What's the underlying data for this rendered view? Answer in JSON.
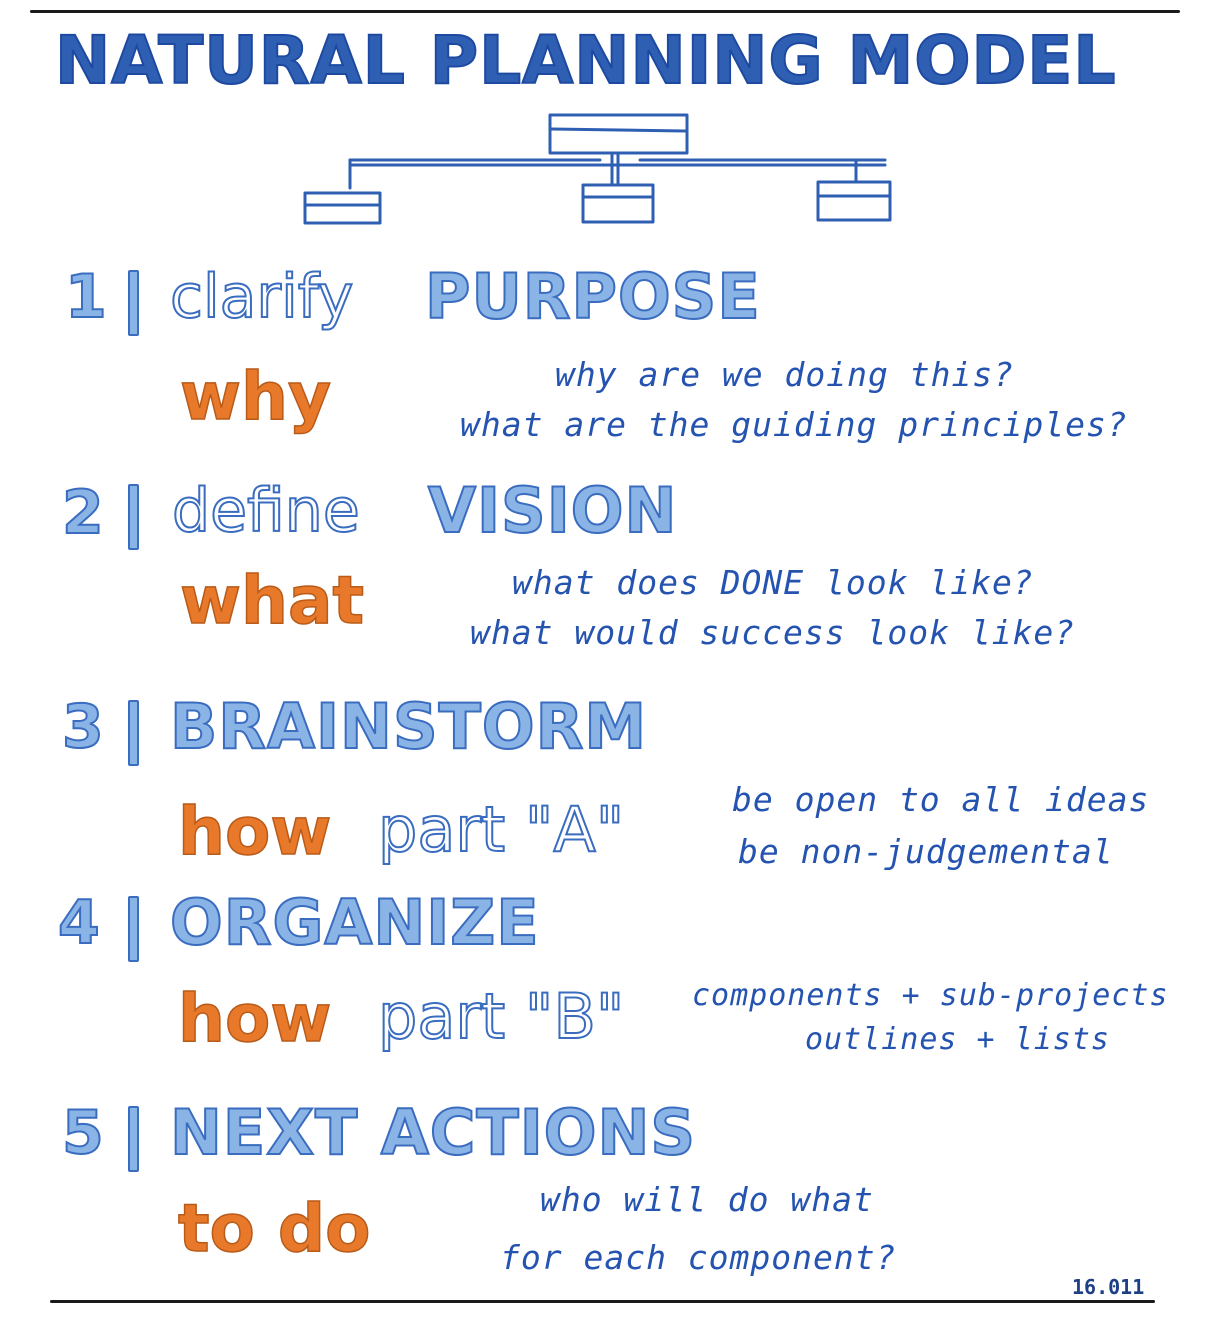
{
  "title": "NATURAL PLANNING MODEL",
  "steps": [
    {
      "number": "1",
      "verb": "clarify",
      "keyword": "PURPOSE",
      "sub": "why",
      "sub_suffix": "",
      "notes": [
        "why are we doing this?",
        "what are the guiding principles?"
      ]
    },
    {
      "number": "2",
      "verb": "define",
      "keyword": "VISION",
      "sub": "what",
      "sub_suffix": "",
      "notes": [
        "what does DONE look like?",
        "what would success look like?"
      ]
    },
    {
      "number": "3",
      "verb": "",
      "keyword": "BRAINSTORM",
      "sub": "how",
      "sub_suffix": "part \"A\"",
      "notes": [
        "be open to all ideas",
        "be non-judgemental"
      ]
    },
    {
      "number": "4",
      "verb": "",
      "keyword": "ORGANIZE",
      "sub": "how",
      "sub_suffix": "part \"B\"",
      "notes": [
        "components + sub-projects",
        "outlines + lists"
      ]
    },
    {
      "number": "5",
      "verb": "",
      "keyword": "NEXT ACTIONS",
      "sub": "to do",
      "sub_suffix": "",
      "notes": [
        "who will do what",
        "for each component?"
      ]
    }
  ],
  "date": "16.011",
  "colors": {
    "title": "#2f5fb3",
    "step_fill": "#8ab4e6",
    "step_stroke": "#3a6cc0",
    "sub_orange": "#e8792b",
    "note_ink": "#2553b0",
    "rule": "#1a1a1a"
  }
}
